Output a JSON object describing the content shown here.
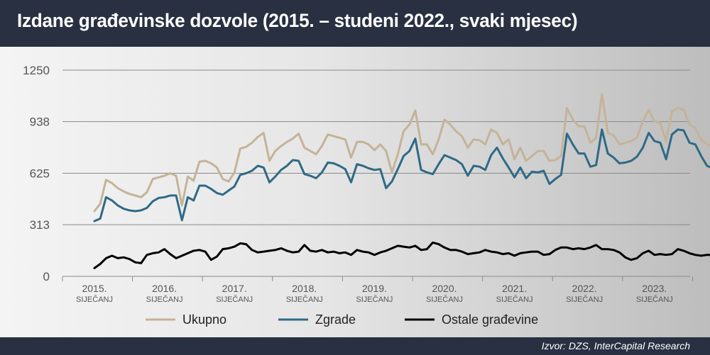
{
  "title": "Izdane građevinske dozvole (2015. – studeni 2022., svaki mjesec)",
  "source": "Izvor: DZS, InterCapital Research",
  "colors": {
    "ukupno": "#c4b398",
    "zgrade": "#2e6a86",
    "ostale": "#000000",
    "header": "#283041"
  },
  "chart_data": {
    "type": "line",
    "title": "Izdane građevinske dozvole (2015. – studeni 2022., svaki mjesec)",
    "xlabel": "",
    "ylabel": "",
    "ylim": [
      0,
      1250
    ],
    "yticks": [
      "1250",
      "938",
      "625",
      "313",
      "0"
    ],
    "yticks_values": [
      1250,
      938,
      625,
      313,
      0
    ],
    "grid": true,
    "legend": "bottom",
    "x_ticks": [
      {
        "year": "2015.",
        "month": "SIJEČANJ"
      },
      {
        "year": "2016.",
        "month": "SIJEČANJ"
      },
      {
        "year": "2017.",
        "month": "SIJEČANJ"
      },
      {
        "year": "2018.",
        "month": "SIJEČANJ"
      },
      {
        "year": "2019.",
        "month": "SIJEČANJ"
      },
      {
        "year": "2020.",
        "month": "SIJEČANJ"
      },
      {
        "year": "2021.",
        "month": "SIJEČANJ"
      },
      {
        "year": "2022.",
        "month": "SIJEČANJ"
      },
      {
        "year": "2023.",
        "month": "SIJEČANJ"
      }
    ],
    "x_start": "2015-01",
    "series": [
      {
        "name": "Ukupno",
        "key": "ukupno",
        "values": [
          395,
          440,
          585,
          565,
          535,
          515,
          500,
          490,
          480,
          510,
          590,
          600,
          610,
          625,
          610,
          430,
          605,
          580,
          695,
          700,
          685,
          660,
          590,
          575,
          630,
          775,
          785,
          810,
          845,
          870,
          700,
          760,
          790,
          815,
          835,
          865,
          780,
          760,
          740,
          790,
          860,
          850,
          840,
          830,
          720,
          815,
          815,
          800,
          765,
          800,
          760,
          630,
          740,
          880,
          920,
          1005,
          800,
          800,
          740,
          830,
          950,
          920,
          880,
          850,
          780,
          830,
          825,
          800,
          890,
          870,
          800,
          830,
          710,
          780,
          700,
          730,
          760,
          760,
          700,
          705,
          730,
          1020,
          950,
          910,
          910,
          810,
          840,
          1105,
          870,
          855,
          800,
          810,
          820,
          840,
          940,
          1010,
          940,
          930,
          820,
          1000,
          1020,
          1010,
          920,
          900,
          830,
          800,
          790,
          960,
          980,
          920
        ]
      },
      {
        "name": "Zgrade",
        "key": "zgrade",
        "values": [
          335,
          350,
          480,
          460,
          430,
          410,
          400,
          395,
          400,
          415,
          455,
          475,
          480,
          490,
          490,
          340,
          480,
          460,
          550,
          550,
          530,
          505,
          495,
          520,
          545,
          615,
          625,
          640,
          670,
          660,
          570,
          605,
          645,
          670,
          705,
          700,
          620,
          610,
          595,
          630,
          690,
          685,
          670,
          650,
          570,
          680,
          670,
          655,
          645,
          650,
          535,
          575,
          650,
          730,
          760,
          835,
          645,
          630,
          620,
          680,
          735,
          720,
          705,
          680,
          610,
          670,
          665,
          645,
          735,
          780,
          715,
          660,
          600,
          660,
          595,
          635,
          630,
          640,
          560,
          590,
          615,
          865,
          800,
          745,
          745,
          665,
          675,
          890,
          745,
          720,
          685,
          690,
          700,
          725,
          780,
          870,
          820,
          810,
          710,
          860,
          890,
          885,
          810,
          800,
          730,
          670,
          655,
          840,
          865,
          790
        ]
      },
      {
        "name": "Ostale građevine",
        "key": "ostale",
        "values": [
          50,
          75,
          110,
          125,
          110,
          115,
          105,
          85,
          80,
          130,
          140,
          145,
          165,
          135,
          110,
          125,
          140,
          155,
          160,
          150,
          100,
          120,
          165,
          170,
          180,
          200,
          195,
          160,
          145,
          150,
          155,
          160,
          170,
          155,
          145,
          150,
          190,
          155,
          150,
          160,
          145,
          150,
          140,
          145,
          130,
          160,
          150,
          145,
          130,
          145,
          155,
          170,
          185,
          180,
          175,
          185,
          160,
          165,
          205,
          195,
          175,
          160,
          160,
          150,
          135,
          140,
          145,
          160,
          150,
          145,
          135,
          140,
          125,
          140,
          145,
          150,
          150,
          130,
          135,
          160,
          175,
          175,
          165,
          170,
          165,
          175,
          190,
          165,
          165,
          160,
          145,
          115,
          100,
          110,
          140,
          155,
          130,
          135,
          130,
          135,
          165,
          155,
          140,
          130,
          125,
          130,
          130,
          135,
          140,
          140
        ]
      }
    ]
  }
}
